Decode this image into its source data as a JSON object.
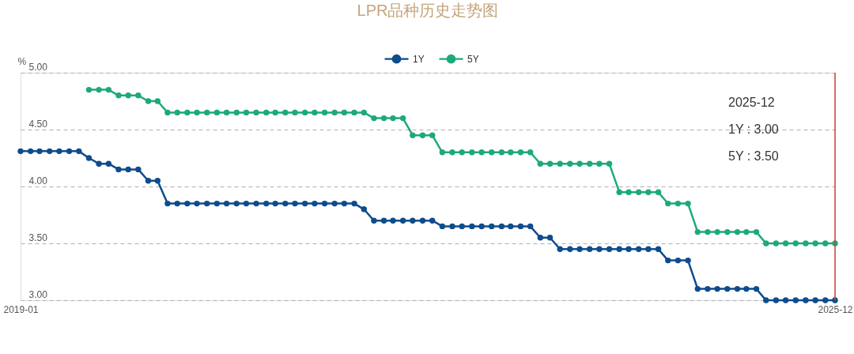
{
  "chart_data": {
    "type": "line",
    "title": "LPR品种历史走势图",
    "ylabel": "%",
    "x": [
      "2019-01",
      "2019-02",
      "2019-03",
      "2019-04",
      "2019-05",
      "2019-06",
      "2019-07",
      "2019-08",
      "2019-09",
      "2019-10",
      "2019-11",
      "2019-12",
      "2020-01",
      "2020-02",
      "2020-03",
      "2020-04",
      "2020-05",
      "2020-06",
      "2020-07",
      "2020-08",
      "2020-09",
      "2020-10",
      "2020-11",
      "2020-12",
      "2021-01",
      "2021-02",
      "2021-03",
      "2021-04",
      "2021-05",
      "2021-06",
      "2021-07",
      "2021-08",
      "2021-09",
      "2021-10",
      "2021-11",
      "2021-12",
      "2022-01",
      "2022-02",
      "2022-03",
      "2022-04",
      "2022-05",
      "2022-06",
      "2022-07",
      "2022-08",
      "2022-09",
      "2022-10",
      "2022-11",
      "2022-12",
      "2023-01",
      "2023-02",
      "2023-03",
      "2023-04",
      "2023-05",
      "2023-06",
      "2023-07",
      "2023-08",
      "2023-09",
      "2023-10",
      "2023-11",
      "2023-12",
      "2024-01",
      "2024-02",
      "2024-03",
      "2024-04",
      "2024-05",
      "2024-06",
      "2024-07",
      "2024-08",
      "2024-09",
      "2024-10",
      "2024-11",
      "2024-12",
      "2025-01",
      "2025-02",
      "2025-03",
      "2025-04",
      "2025-05",
      "2025-06",
      "2025-07",
      "2025-08",
      "2025-09",
      "2025-10",
      "2025-11",
      "2025-12"
    ],
    "series": [
      {
        "name": "1Y",
        "color": "#0e4c8c",
        "values": [
          4.31,
          4.31,
          4.31,
          4.31,
          4.31,
          4.31,
          4.31,
          4.25,
          4.2,
          4.2,
          4.15,
          4.15,
          4.15,
          4.05,
          4.05,
          3.85,
          3.85,
          3.85,
          3.85,
          3.85,
          3.85,
          3.85,
          3.85,
          3.85,
          3.85,
          3.85,
          3.85,
          3.85,
          3.85,
          3.85,
          3.85,
          3.85,
          3.85,
          3.85,
          3.85,
          3.8,
          3.7,
          3.7,
          3.7,
          3.7,
          3.7,
          3.7,
          3.7,
          3.65,
          3.65,
          3.65,
          3.65,
          3.65,
          3.65,
          3.65,
          3.65,
          3.65,
          3.65,
          3.55,
          3.55,
          3.45,
          3.45,
          3.45,
          3.45,
          3.45,
          3.45,
          3.45,
          3.45,
          3.45,
          3.45,
          3.45,
          3.35,
          3.35,
          3.35,
          3.1,
          3.1,
          3.1,
          3.1,
          3.1,
          3.1,
          3.1,
          3.0,
          3.0,
          3.0,
          3.0,
          3.0,
          3.0,
          3.0,
          3.0
        ]
      },
      {
        "name": "5Y",
        "color": "#1daa78",
        "values": [
          null,
          null,
          null,
          null,
          null,
          null,
          null,
          4.85,
          4.85,
          4.85,
          4.8,
          4.8,
          4.8,
          4.75,
          4.75,
          4.65,
          4.65,
          4.65,
          4.65,
          4.65,
          4.65,
          4.65,
          4.65,
          4.65,
          4.65,
          4.65,
          4.65,
          4.65,
          4.65,
          4.65,
          4.65,
          4.65,
          4.65,
          4.65,
          4.65,
          4.65,
          4.6,
          4.6,
          4.6,
          4.6,
          4.45,
          4.45,
          4.45,
          4.3,
          4.3,
          4.3,
          4.3,
          4.3,
          4.3,
          4.3,
          4.3,
          4.3,
          4.3,
          4.2,
          4.2,
          4.2,
          4.2,
          4.2,
          4.2,
          4.2,
          4.2,
          3.95,
          3.95,
          3.95,
          3.95,
          3.95,
          3.85,
          3.85,
          3.85,
          3.6,
          3.6,
          3.6,
          3.6,
          3.6,
          3.6,
          3.6,
          3.5,
          3.5,
          3.5,
          3.5,
          3.5,
          3.5,
          3.5,
          3.5
        ]
      }
    ],
    "xlim": [
      "2019-01",
      "2025-12"
    ],
    "xticks": [
      "2019-01",
      "2025-12"
    ],
    "ylim": [
      3,
      5
    ],
    "yticks": [
      {
        "value": 3,
        "label": "3.00"
      },
      {
        "value": 3.5,
        "label": "3.50"
      },
      {
        "value": 4,
        "label": "4.00"
      },
      {
        "value": 4.5,
        "label": "4.50"
      },
      {
        "value": 5,
        "label": "5.00"
      }
    ],
    "grid": "y",
    "legend": "top",
    "marker": "circle",
    "line_style": "solid",
    "ref_lines": [
      {
        "axis": "x",
        "value": "2025-12",
        "color": "#c9453f"
      }
    ],
    "annotations": [
      "2025-12",
      "1Y : 3.00",
      "5Y : 3.50"
    ]
  }
}
